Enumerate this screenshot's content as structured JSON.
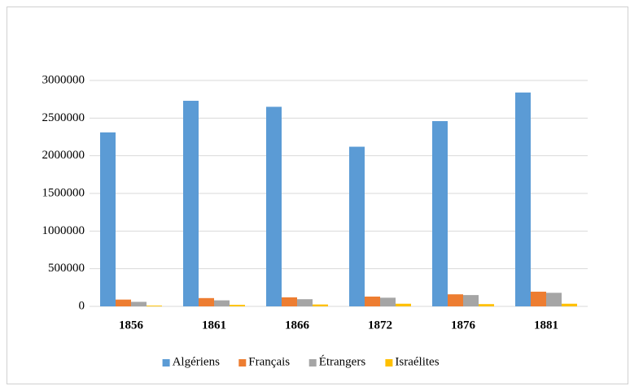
{
  "chart_data": {
    "type": "bar",
    "categories": [
      "1856",
      "1861",
      "1866",
      "1872",
      "1876",
      "1881"
    ],
    "series": [
      {
        "name": "Algériens",
        "color": "#5b9bd5",
        "values": [
          2310000,
          2730000,
          2650000,
          2120000,
          2460000,
          2840000
        ]
      },
      {
        "name": "Français",
        "color": "#ed7d31",
        "values": [
          90000,
          110000,
          120000,
          130000,
          160000,
          195000
        ]
      },
      {
        "name": "Étrangers",
        "color": "#a5a5a5",
        "values": [
          60000,
          80000,
          95000,
          115000,
          150000,
          180000
        ]
      },
      {
        "name": "Israélites",
        "color": "#ffc000",
        "values": [
          10000,
          20000,
          25000,
          35000,
          30000,
          35000
        ]
      }
    ],
    "ylim": [
      0,
      3000000
    ],
    "yticks": [
      0,
      500000,
      1000000,
      1500000,
      2000000,
      2500000,
      3000000
    ],
    "grid": true,
    "legend": "bottom"
  }
}
